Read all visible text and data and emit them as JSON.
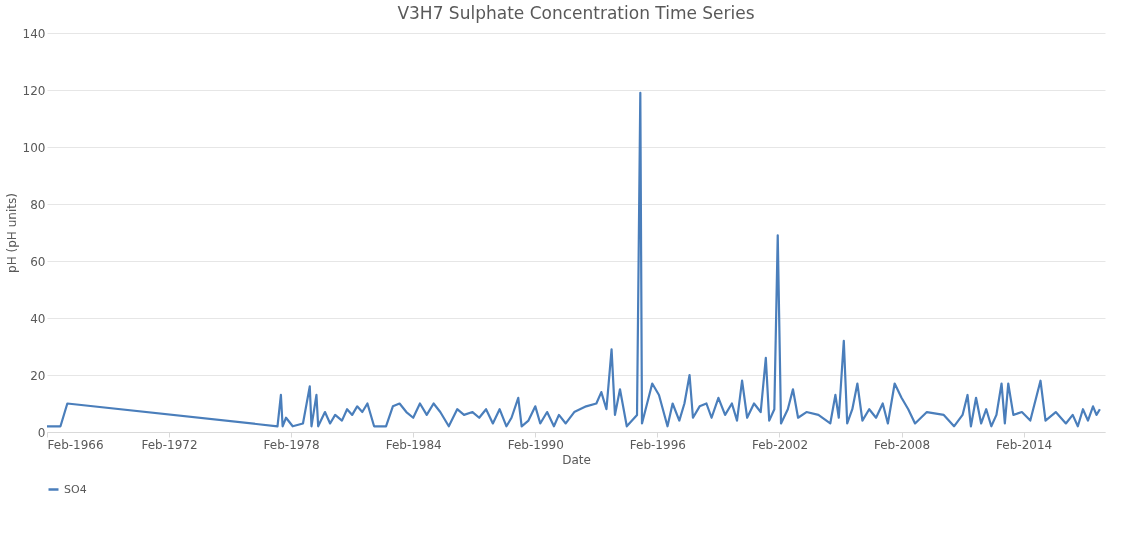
{
  "chart_data": {
    "type": "line",
    "title": "V3H7 Sulphate Concentration Time Series",
    "xlabel": "Date",
    "ylabel": "pH (pH units)",
    "x": [
      "1966-02",
      "1966-10",
      "1967-02",
      "1977-06",
      "1977-08",
      "1977-09",
      "1977-11",
      "1978-03",
      "1978-09",
      "1979-01",
      "1979-02",
      "1979-05",
      "1979-06",
      "1979-10",
      "1980-01",
      "1980-04",
      "1980-08",
      "1980-11",
      "1981-02",
      "1981-05",
      "1981-08",
      "1981-11",
      "1982-03",
      "1982-10",
      "1983-02",
      "1983-06",
      "1983-10",
      "1984-02",
      "1984-06",
      "1984-10",
      "1985-02",
      "1985-06",
      "1985-11",
      "1986-04",
      "1986-08",
      "1987-01",
      "1987-05",
      "1987-09",
      "1988-01",
      "1988-05",
      "1988-09",
      "1988-12",
      "1989-04",
      "1989-06",
      "1989-10",
      "1990-02",
      "1990-05",
      "1990-09",
      "1991-01",
      "1991-04",
      "1991-08",
      "1992-01",
      "1992-08",
      "1993-02",
      "1993-05",
      "1993-08",
      "1993-11",
      "1994-01",
      "1994-04",
      "1994-08",
      "1995-02",
      "1995-04",
      "1995-05",
      "1995-08",
      "1995-11",
      "1996-03",
      "1996-08",
      "1996-11",
      "1997-03",
      "1997-06",
      "1997-09",
      "1997-11",
      "1998-03",
      "1998-07",
      "1998-10",
      "1999-02",
      "1999-06",
      "1999-10",
      "2000-01",
      "2000-04",
      "2000-07",
      "2000-11",
      "2001-03",
      "2001-06",
      "2001-08",
      "2001-11",
      "2002-01",
      "2002-03",
      "2002-07",
      "2002-10",
      "2003-01",
      "2003-06",
      "2004-01",
      "2004-08",
      "2004-11",
      "2005-01",
      "2005-04",
      "2005-06",
      "2005-09",
      "2005-12",
      "2006-03",
      "2006-07",
      "2006-11",
      "2007-03",
      "2007-06",
      "2007-10",
      "2008-02",
      "2008-06",
      "2008-10",
      "2009-05",
      "2010-03",
      "2010-09",
      "2011-02",
      "2011-05",
      "2011-07",
      "2011-10",
      "2012-01",
      "2012-04",
      "2012-07",
      "2012-10",
      "2013-01",
      "2013-03",
      "2013-05",
      "2013-08",
      "2014-01",
      "2014-06",
      "2014-12",
      "2015-03",
      "2015-09",
      "2016-03",
      "2016-07",
      "2016-10",
      "2017-01",
      "2017-04",
      "2017-07",
      "2017-09",
      "2017-11"
    ],
    "series": [
      {
        "name": "SO4",
        "color": "#4a7ebb",
        "values": [
          2,
          2,
          10,
          2,
          13,
          2,
          5,
          2,
          3,
          16,
          2,
          13,
          2,
          7,
          3,
          6,
          4,
          8,
          6,
          9,
          7,
          10,
          2,
          2,
          9,
          10,
          7,
          5,
          10,
          6,
          10,
          7,
          2,
          8,
          6,
          7,
          5,
          8,
          3,
          8,
          2,
          5,
          12,
          2,
          4,
          9,
          3,
          7,
          2,
          6,
          3,
          7,
          9,
          10,
          14,
          8,
          29,
          6,
          15,
          2,
          6,
          119,
          3,
          10,
          17,
          13,
          2,
          10,
          4,
          10,
          20,
          5,
          9,
          10,
          5,
          12,
          6,
          10,
          4,
          18,
          5,
          10,
          7,
          26,
          4,
          8,
          69,
          3,
          8,
          15,
          5,
          7,
          6,
          3,
          13,
          5,
          32,
          3,
          8,
          17,
          4,
          8,
          5,
          10,
          3,
          17,
          12,
          8,
          3,
          7,
          6,
          2,
          6,
          13,
          2,
          12,
          3,
          8,
          2,
          6,
          17,
          3,
          17,
          6,
          7,
          4,
          18,
          4,
          7,
          3,
          6,
          2,
          8,
          4,
          9,
          6,
          8
        ]
      }
    ],
    "xlim": [
      "1966-02",
      "2018-02"
    ],
    "xticks": [
      {
        "value": "1966-02",
        "label": "Feb-1966"
      },
      {
        "value": "1972-02",
        "label": "Feb-1972"
      },
      {
        "value": "1978-02",
        "label": "Feb-1978"
      },
      {
        "value": "1984-02",
        "label": "Feb-1984"
      },
      {
        "value": "1990-02",
        "label": "Feb-1990"
      },
      {
        "value": "1996-02",
        "label": "Feb-1996"
      },
      {
        "value": "2002-02",
        "label": "Feb-2002"
      },
      {
        "value": "2008-02",
        "label": "Feb-2008"
      },
      {
        "value": "2014-02",
        "label": "Feb-2014"
      }
    ],
    "ylim": [
      0,
      140
    ],
    "yticks": [
      0,
      20,
      40,
      60,
      80,
      100,
      120,
      140
    ],
    "grid": "y",
    "legend": "bottom",
    "marker": "none",
    "line_style": "solid"
  }
}
